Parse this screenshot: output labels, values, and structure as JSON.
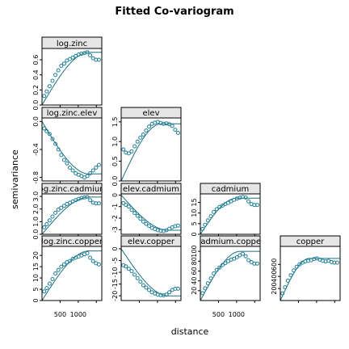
{
  "chart_data": {
    "type": "scatter",
    "title": "Fitted Co-variogram",
    "xlabel": "distance",
    "ylabel": "semivariance",
    "xlim": [
      0,
      1650
    ],
    "x_ticks": [
      500,
      1000
    ],
    "x_tick_labels": [
      "500",
      "1000"
    ],
    "grid": false,
    "colors": {
      "points": "#1f7f96",
      "line": "#1f6f7f",
      "strip": "#e6e6e6"
    },
    "lags": [
      60,
      130,
      210,
      290,
      370,
      450,
      530,
      610,
      690,
      770,
      850,
      930,
      1010,
      1090,
      1170,
      1250,
      1330,
      1410,
      1490,
      1570
    ],
    "panels": [
      {
        "name": "log.zinc",
        "row": 0,
        "col": 0,
        "ylim": [
          0,
          0.75
        ],
        "yticks": [
          0,
          0.2,
          0.4,
          0.6
        ],
        "ytick_labels": [
          "0.0",
          "0.2",
          "0.4",
          "0.6"
        ],
        "model_sill": 0.7,
        "model_range": 1300,
        "gamma": [
          0.12,
          0.18,
          0.25,
          0.32,
          0.4,
          0.46,
          0.52,
          0.55,
          0.59,
          0.61,
          0.63,
          0.65,
          0.67,
          0.68,
          0.69,
          0.7,
          0.66,
          0.62,
          0.6,
          0.6
        ]
      },
      {
        "name": "log.zinc.elev",
        "row": 1,
        "col": 0,
        "ylim": [
          -0.85,
          0.05
        ],
        "yticks": [
          0,
          -0.4,
          -0.8
        ],
        "ytick_labels": [
          "0.0",
          "-0.4",
          "-0.8"
        ],
        "model_sill": -0.75,
        "model_range": 1300,
        "gamma": [
          -0.1,
          -0.14,
          -0.18,
          -0.25,
          -0.32,
          -0.4,
          -0.48,
          -0.55,
          -0.6,
          -0.66,
          -0.7,
          -0.74,
          -0.76,
          -0.78,
          -0.8,
          -0.78,
          -0.74,
          -0.7,
          -0.66,
          -0.62
        ]
      },
      {
        "name": "elev",
        "row": 1,
        "col": 1,
        "ylim": [
          0,
          1.6
        ],
        "yticks": [
          0,
          0.5,
          1.0,
          1.5
        ],
        "ytick_labels": [
          "0.0",
          "0.5",
          "1.0",
          "1.5"
        ],
        "model_sill": 1.45,
        "model_range": 1100,
        "gamma": [
          0.8,
          0.72,
          0.7,
          0.75,
          0.88,
          1.0,
          1.1,
          1.18,
          1.28,
          1.38,
          1.45,
          1.48,
          1.5,
          1.47,
          1.45,
          1.46,
          1.44,
          1.4,
          1.3,
          1.22
        ]
      },
      {
        "name": "log.zinc.cadmium",
        "row": 2,
        "col": 0,
        "ylim": [
          0,
          3.2
        ],
        "yticks": [
          0,
          1.0,
          2.0,
          3.0
        ],
        "ytick_labels": [
          "0.0",
          "1.0",
          "2.0",
          "3.0"
        ],
        "model_sill": 2.95,
        "model_range": 1300,
        "gamma": [
          0.55,
          0.8,
          1.1,
          1.4,
          1.7,
          1.95,
          2.1,
          2.25,
          2.4,
          2.5,
          2.6,
          2.7,
          2.8,
          2.88,
          2.92,
          2.95,
          2.7,
          2.5,
          2.45,
          2.45
        ]
      },
      {
        "name": "elev.cadmium",
        "row": 2,
        "col": 1,
        "ylim": [
          -3.4,
          0.1
        ],
        "yticks": [
          0,
          -1,
          -2,
          -3
        ],
        "ytick_labels": [
          "0",
          "-1",
          "-2",
          "-3"
        ],
        "model_sill": -3.05,
        "model_range": 1300,
        "gamma": [
          -0.7,
          -0.85,
          -1.0,
          -1.3,
          -1.55,
          -1.8,
          -2.05,
          -2.3,
          -2.5,
          -2.68,
          -2.85,
          -2.95,
          -3.05,
          -3.1,
          -3.12,
          -3.05,
          -2.92,
          -2.8,
          -2.7,
          -2.65
        ]
      },
      {
        "name": "cadmium",
        "row": 2,
        "col": 2,
        "ylim": [
          0,
          19
        ],
        "yticks": [
          0,
          5,
          10,
          15
        ],
        "ytick_labels": [
          "0",
          "5",
          "10",
          "15"
        ],
        "model_sill": 17,
        "model_range": 1000,
        "gamma": [
          2.5,
          4.5,
          6.5,
          8.5,
          10.5,
          11.8,
          12.8,
          13.5,
          14.2,
          14.8,
          15.5,
          16.2,
          16.8,
          17.2,
          17.6,
          17.3,
          15.5,
          14.2,
          13.8,
          13.8
        ]
      },
      {
        "name": "log.zinc.copper",
        "row": 3,
        "col": 0,
        "ylim": [
          0,
          24
        ],
        "yticks": [
          0,
          5,
          10,
          15,
          20
        ],
        "ytick_labels": [
          "0",
          "5",
          "10",
          "15",
          "20"
        ],
        "model_sill": 22,
        "model_range": 1300,
        "gamma": [
          4,
          5.5,
          7.5,
          9.5,
          12,
          13.5,
          15,
          16,
          17,
          17.5,
          18.5,
          19,
          19.5,
          20,
          20.5,
          21,
          19,
          17.5,
          16.5,
          16
        ]
      },
      {
        "name": "elev.copper",
        "row": 3,
        "col": 1,
        "ylim": [
          -22,
          1
        ],
        "yticks": [
          0,
          -5,
          -10,
          -15,
          -20
        ],
        "ytick_labels": [
          "0",
          "-5",
          "-10",
          "-15",
          "-20"
        ],
        "model_sill": -20,
        "model_range": 1300,
        "gamma": [
          -7,
          -7.5,
          -8.5,
          -9.5,
          -11,
          -12.5,
          -14,
          -15.5,
          -16.5,
          -17.5,
          -18.5,
          -19,
          -19.5,
          -19.7,
          -19.8,
          -19.5,
          -18.5,
          -17.5,
          -17,
          -17
        ]
      },
      {
        "name": "cadmium.copper",
        "row": 3,
        "col": 2,
        "ylim": [
          0,
          110
        ],
        "yticks": [
          20,
          40,
          60,
          80,
          100
        ],
        "ytick_labels": [
          "20",
          "40",
          "60",
          "80",
          "100"
        ],
        "model_sill": 100,
        "model_range": 1100,
        "gamma": [
          15,
          25,
          35,
          45,
          55,
          62,
          67,
          72,
          76,
          80,
          83,
          85,
          88,
          92,
          95,
          90,
          82,
          78,
          75,
          75
        ]
      },
      {
        "name": "copper",
        "row": 3,
        "col": 3,
        "ylim": [
          0,
          900
        ],
        "yticks": [
          200,
          400,
          600
        ],
        "ytick_labels": [
          "200",
          "400",
          "600"
        ],
        "model_sill": 700,
        "model_range": 800,
        "gamma": [
          120,
          220,
          330,
          420,
          500,
          560,
          600,
          630,
          650,
          660,
          670,
          690,
          700,
          680,
          660,
          650,
          660,
          640,
          630,
          630
        ]
      }
    ],
    "x_axis_label_cols": [
      0,
      2
    ]
  }
}
